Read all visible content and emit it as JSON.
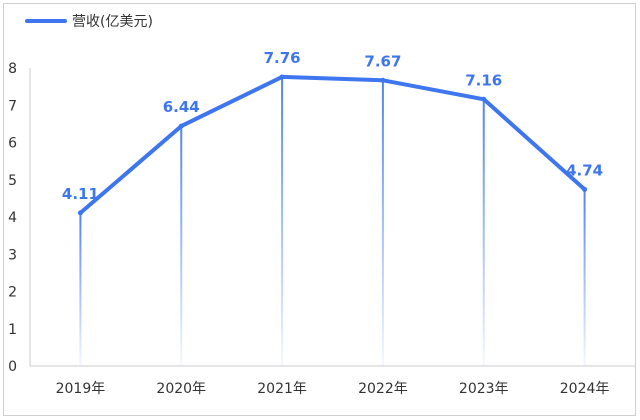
{
  "chart_data": {
    "type": "line",
    "categories": [
      "2019年",
      "2020年",
      "2021年",
      "2022年",
      "2023年",
      "2024年"
    ],
    "series": [
      {
        "name": "营收(亿美元)",
        "values": [
          4.11,
          6.44,
          7.76,
          7.67,
          7.16,
          4.74
        ]
      }
    ],
    "ylim": [
      0,
      8
    ],
    "yticks": [
      0,
      1,
      2,
      3,
      4,
      5,
      6,
      7,
      8
    ],
    "title": "",
    "xlabel": "",
    "ylabel": "",
    "legend_position": "top-left",
    "grid": false,
    "drop_lines": true,
    "data_labels": true,
    "colors": {
      "line": "#3d76ee",
      "label": "#3d76ee"
    }
  }
}
